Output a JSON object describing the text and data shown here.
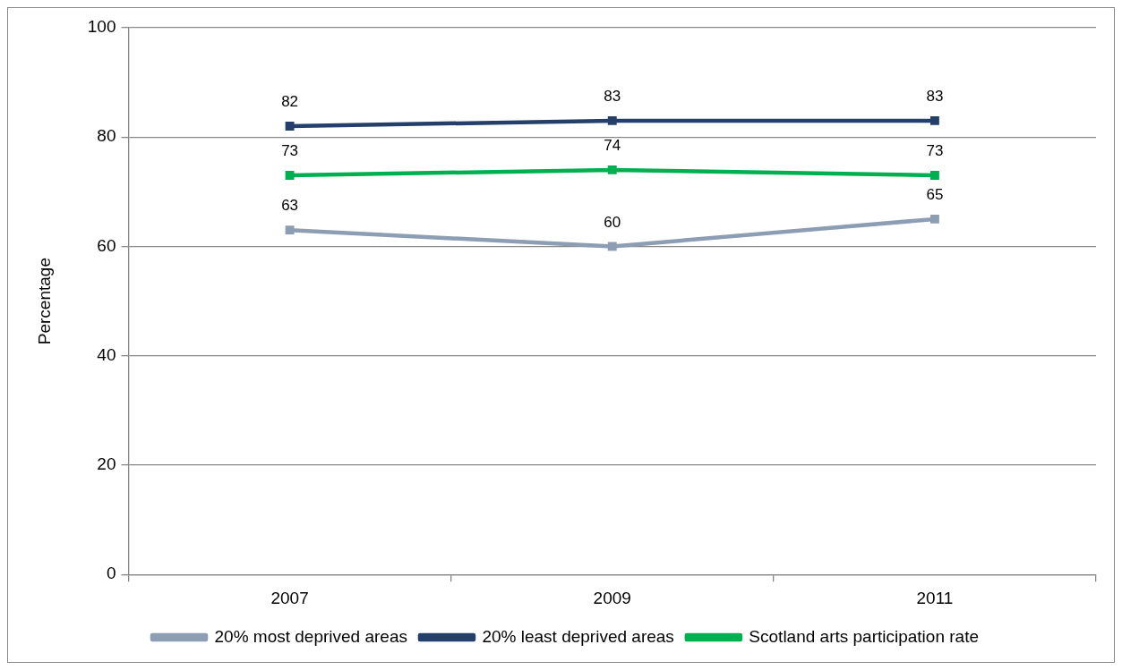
{
  "chart_data": {
    "type": "line",
    "categories": [
      "2007",
      "2009",
      "2011"
    ],
    "ylabel": "Percentage",
    "ylim": [
      0,
      100
    ],
    "yticks": [
      0,
      20,
      40,
      60,
      80,
      100
    ],
    "grid": "y",
    "legend": "bottom",
    "marker": "square",
    "data_labels": true,
    "series": [
      {
        "name": "20% most deprived areas",
        "color": "#8c9db4",
        "values": [
          63,
          60,
          65
        ]
      },
      {
        "name": "20% least deprived areas",
        "color": "#24406a",
        "values": [
          82,
          83,
          83
        ]
      },
      {
        "name": "Scotland arts participation rate",
        "color": "#00b050",
        "values": [
          73,
          74,
          73
        ]
      }
    ]
  }
}
